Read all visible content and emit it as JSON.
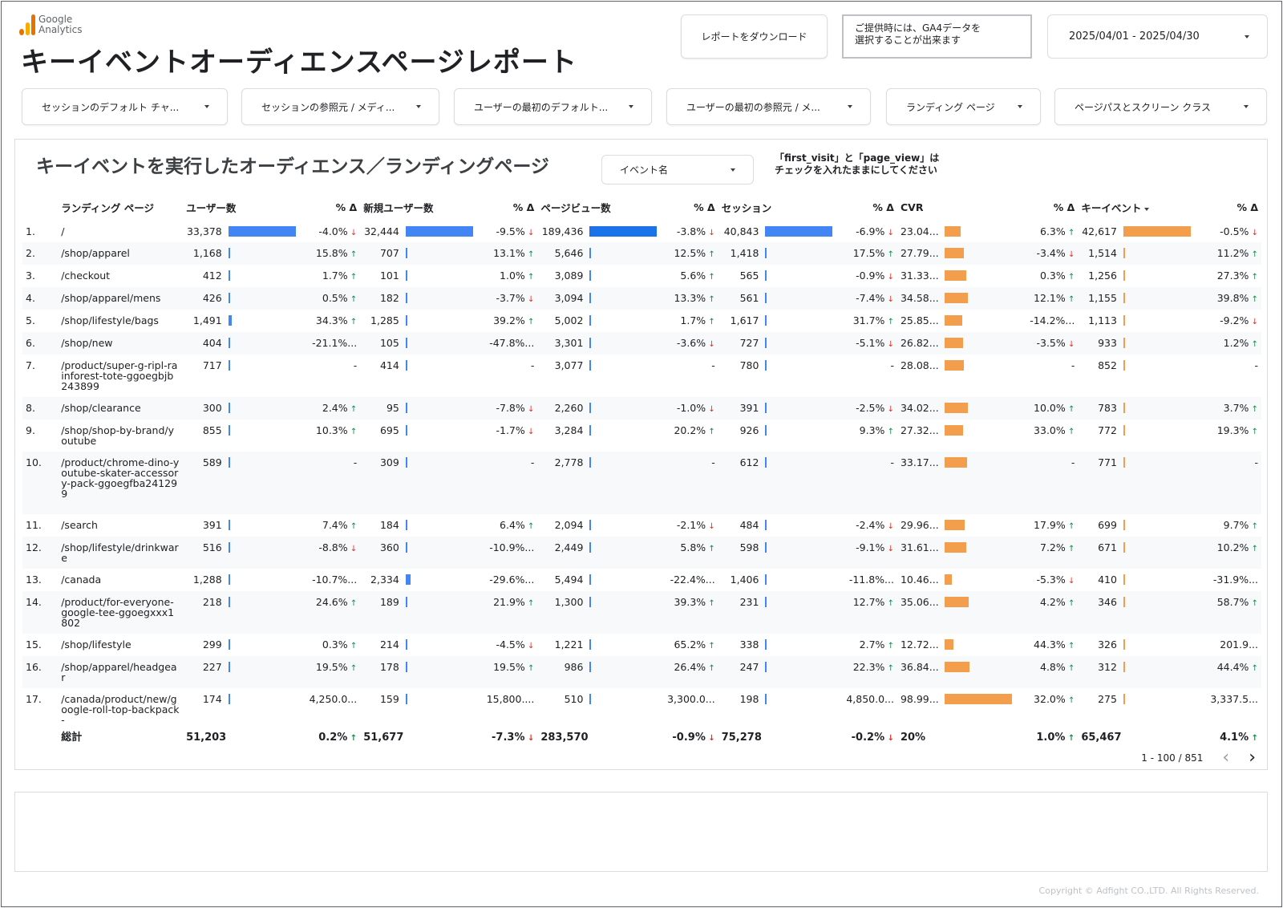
{
  "logo": {
    "line1": "Google",
    "line2": "Analytics"
  },
  "page_title": "キーイベントオーディエンスページレポート",
  "download_label": "レポートをダウンロード",
  "note": {
    "line1": "ご提供時には、GA4データを",
    "line2": "選択することが出来ます"
  },
  "date_range": "2025/04/01 - 2025/04/30",
  "filters": [
    "セッションのデフォルト チャ...",
    "セッションの参照元 / メディ...",
    "ユーザーの最初のデフォルト...",
    "ユーザーの最初の参照元 / メ...",
    "ランディング ページ",
    "ページパスとスクリーン クラス"
  ],
  "panel": {
    "title": "キーイベントを実行したオーディエンス／ランディングページ",
    "event_select": "イベント名",
    "note_line1": "「first_visit」と「page_view」は",
    "note_line2": "チェックを入れたままにしてください"
  },
  "table": {
    "headers": {
      "page": "ランディング ページ",
      "users": "ユーザー数",
      "pct": "% Δ",
      "new_users": "新規ユーザー数",
      "views": "ページビュー数",
      "sessions": "セッション",
      "cvr": "CVR",
      "key_events": "キーイベント"
    },
    "rows": [
      {
        "i": "1.",
        "page": "/",
        "u": "33,378",
        "uv": 33378,
        "ud": "-4.0%",
        "udir": "down",
        "n": "32,444",
        "nv": 32444,
        "nd": "-9.5%",
        "ndir": "down",
        "p": "189,436",
        "pv": 189436,
        "pd": "-3.8%",
        "pdir": "down",
        "s": "40,843",
        "sv": 40843,
        "sd": "-6.9%",
        "sdir": "down",
        "c": "23.04...",
        "cv": 23.04,
        "cd": "6.3%",
        "cdir": "up",
        "k": "42,617",
        "kv": 42617,
        "kd": "-0.5%",
        "kdir": "down"
      },
      {
        "i": "2.",
        "page": "/shop/apparel",
        "u": "1,168",
        "uv": 1168,
        "ud": "15.8%",
        "udir": "up",
        "n": "707",
        "nv": 707,
        "nd": "13.1%",
        "ndir": "up",
        "p": "5,646",
        "pv": 5646,
        "pd": "12.5%",
        "pdir": "up",
        "s": "1,418",
        "sv": 1418,
        "sd": "17.5%",
        "sdir": "up",
        "c": "27.79...",
        "cv": 27.79,
        "cd": "-3.4%",
        "cdir": "down",
        "k": "1,514",
        "kv": 1514,
        "kd": "11.2%",
        "kdir": "up"
      },
      {
        "i": "3.",
        "page": "/checkout",
        "u": "412",
        "uv": 412,
        "ud": "1.7%",
        "udir": "up",
        "n": "101",
        "nv": 101,
        "nd": "1.0%",
        "ndir": "up",
        "p": "3,089",
        "pv": 3089,
        "pd": "5.6%",
        "pdir": "up",
        "s": "565",
        "sv": 565,
        "sd": "-0.9%",
        "sdir": "down",
        "c": "31.33...",
        "cv": 31.33,
        "cd": "0.3%",
        "cdir": "up",
        "k": "1,256",
        "kv": 1256,
        "kd": "27.3%",
        "kdir": "up"
      },
      {
        "i": "4.",
        "page": "/shop/apparel/mens",
        "u": "426",
        "uv": 426,
        "ud": "0.5%",
        "udir": "up",
        "n": "182",
        "nv": 182,
        "nd": "-3.7%",
        "ndir": "down",
        "p": "3,094",
        "pv": 3094,
        "pd": "13.3%",
        "pdir": "up",
        "s": "561",
        "sv": 561,
        "sd": "-7.4%",
        "sdir": "down",
        "c": "34.58...",
        "cv": 34.58,
        "cd": "12.1%",
        "cdir": "up",
        "k": "1,155",
        "kv": 1155,
        "kd": "39.8%",
        "kdir": "up"
      },
      {
        "i": "5.",
        "page": "/shop/lifestyle/bags",
        "u": "1,491",
        "uv": 1491,
        "ud": "34.3%",
        "udir": "up",
        "n": "1,285",
        "nv": 1285,
        "nd": "39.2%",
        "ndir": "up",
        "p": "5,002",
        "pv": 5002,
        "pd": "1.7%",
        "pdir": "up",
        "s": "1,617",
        "sv": 1617,
        "sd": "31.7%",
        "sdir": "up",
        "c": "25.85...",
        "cv": 25.85,
        "cd": "-14.2%...",
        "cdir": "",
        "k": "1,113",
        "kv": 1113,
        "kd": "-9.2%",
        "kdir": "down"
      },
      {
        "i": "6.",
        "page": "/shop/new",
        "u": "404",
        "uv": 404,
        "ud": "-21.1%...",
        "udir": "",
        "n": "105",
        "nv": 105,
        "nd": "-47.8%...",
        "ndir": "",
        "p": "3,301",
        "pv": 3301,
        "pd": "-3.6%",
        "pdir": "down",
        "s": "727",
        "sv": 727,
        "sd": "-5.1%",
        "sdir": "down",
        "c": "26.82...",
        "cv": 26.82,
        "cd": "-3.5%",
        "cdir": "down",
        "k": "933",
        "kv": 933,
        "kd": "1.2%",
        "kdir": "up"
      },
      {
        "i": "7.",
        "page": "/product/super-g-ripl-rainforest-tote-ggoegbjb243899",
        "u": "717",
        "uv": 717,
        "ud": "-",
        "udir": "",
        "n": "414",
        "nv": 414,
        "nd": "-",
        "ndir": "",
        "p": "3,077",
        "pv": 3077,
        "pd": "-",
        "pdir": "",
        "s": "780",
        "sv": 780,
        "sd": "-",
        "sdir": "",
        "c": "28.08...",
        "cv": 28.08,
        "cd": "-",
        "cdir": "",
        "k": "852",
        "kv": 852,
        "kd": "-",
        "kdir": ""
      },
      {
        "i": "8.",
        "page": "/shop/clearance",
        "u": "300",
        "uv": 300,
        "ud": "2.4%",
        "udir": "up",
        "n": "95",
        "nv": 95,
        "nd": "-7.8%",
        "ndir": "down",
        "p": "2,260",
        "pv": 2260,
        "pd": "-1.0%",
        "pdir": "down",
        "s": "391",
        "sv": 391,
        "sd": "-2.5%",
        "sdir": "down",
        "c": "34.02...",
        "cv": 34.02,
        "cd": "10.0%",
        "cdir": "up",
        "k": "783",
        "kv": 783,
        "kd": "3.7%",
        "kdir": "up"
      },
      {
        "i": "9.",
        "page": "/shop/shop-by-brand/youtube",
        "u": "855",
        "uv": 855,
        "ud": "10.3%",
        "udir": "up",
        "n": "695",
        "nv": 695,
        "nd": "-1.7%",
        "ndir": "down",
        "p": "3,284",
        "pv": 3284,
        "pd": "20.2%",
        "pdir": "up",
        "s": "926",
        "sv": 926,
        "sd": "9.3%",
        "sdir": "up",
        "c": "27.32...",
        "cv": 27.32,
        "cd": "33.0%",
        "cdir": "up",
        "k": "772",
        "kv": 772,
        "kd": "19.3%",
        "kdir": "up"
      },
      {
        "i": "10.",
        "page": "/product/chrome-dino-youtube-skater-accessory-pack-ggoegfba241299",
        "u": "589",
        "uv": 589,
        "ud": "-",
        "udir": "",
        "n": "309",
        "nv": 309,
        "nd": "-",
        "ndir": "",
        "p": "2,778",
        "pv": 2778,
        "pd": "-",
        "pdir": "",
        "s": "612",
        "sv": 612,
        "sd": "-",
        "sdir": "",
        "c": "33.17...",
        "cv": 33.17,
        "cd": "-",
        "cdir": "",
        "k": "771",
        "kv": 771,
        "kd": "-",
        "kdir": ""
      },
      {
        "i": "11.",
        "page": "/search",
        "u": "391",
        "uv": 391,
        "ud": "7.4%",
        "udir": "up",
        "n": "184",
        "nv": 184,
        "nd": "6.4%",
        "ndir": "up",
        "p": "2,094",
        "pv": 2094,
        "pd": "-2.1%",
        "pdir": "down",
        "s": "484",
        "sv": 484,
        "sd": "-2.4%",
        "sdir": "down",
        "c": "29.96...",
        "cv": 29.96,
        "cd": "17.9%",
        "cdir": "up",
        "k": "699",
        "kv": 699,
        "kd": "9.7%",
        "kdir": "up"
      },
      {
        "i": "12.",
        "page": "/shop/lifestyle/drinkware",
        "u": "516",
        "uv": 516,
        "ud": "-8.8%",
        "udir": "down",
        "n": "360",
        "nv": 360,
        "nd": "-10.9%...",
        "ndir": "",
        "p": "2,449",
        "pv": 2449,
        "pd": "5.8%",
        "pdir": "up",
        "s": "598",
        "sv": 598,
        "sd": "-9.1%",
        "sdir": "down",
        "c": "31.61...",
        "cv": 31.61,
        "cd": "7.2%",
        "cdir": "up",
        "k": "671",
        "kv": 671,
        "kd": "10.2%",
        "kdir": "up"
      },
      {
        "i": "13.",
        "page": "/canada",
        "u": "1,288",
        "uv": 1288,
        "ud": "-10.7%...",
        "udir": "",
        "n": "2,334",
        "nv": 2334,
        "nd": "-29.6%...",
        "ndir": "",
        "p": "5,494",
        "pv": 5494,
        "pd": "-22.4%...",
        "pdir": "",
        "s": "1,406",
        "sv": 1406,
        "sd": "-11.8%...",
        "sdir": "",
        "c": "10.46...",
        "cv": 10.46,
        "cd": "-5.3%",
        "cdir": "down",
        "k": "410",
        "kv": 410,
        "kd": "-31.9%...",
        "kdir": ""
      },
      {
        "i": "14.",
        "page": "/product/for-everyone-google-tee-ggoegxxx1802",
        "u": "218",
        "uv": 218,
        "ud": "24.6%",
        "udir": "up",
        "n": "189",
        "nv": 189,
        "nd": "21.9%",
        "ndir": "up",
        "p": "1,300",
        "pv": 1300,
        "pd": "39.3%",
        "pdir": "up",
        "s": "231",
        "sv": 231,
        "sd": "12.7%",
        "sdir": "up",
        "c": "35.06...",
        "cv": 35.06,
        "cd": "4.2%",
        "cdir": "up",
        "k": "346",
        "kv": 346,
        "kd": "58.7%",
        "kdir": "up"
      },
      {
        "i": "15.",
        "page": "/shop/lifestyle",
        "u": "299",
        "uv": 299,
        "ud": "0.3%",
        "udir": "up",
        "n": "214",
        "nv": 214,
        "nd": "-4.5%",
        "ndir": "down",
        "p": "1,221",
        "pv": 1221,
        "pd": "65.2%",
        "pdir": "up",
        "s": "338",
        "sv": 338,
        "sd": "2.7%",
        "sdir": "up",
        "c": "12.72...",
        "cv": 12.72,
        "cd": "44.3%",
        "cdir": "up",
        "k": "326",
        "kv": 326,
        "kd": "201.9...",
        "kdir": ""
      },
      {
        "i": "16.",
        "page": "/shop/apparel/headgear",
        "u": "227",
        "uv": 227,
        "ud": "19.5%",
        "udir": "up",
        "n": "178",
        "nv": 178,
        "nd": "19.5%",
        "ndir": "up",
        "p": "986",
        "pv": 986,
        "pd": "26.4%",
        "pdir": "up",
        "s": "247",
        "sv": 247,
        "sd": "22.3%",
        "sdir": "up",
        "c": "36.84...",
        "cv": 36.84,
        "cd": "4.8%",
        "cdir": "up",
        "k": "312",
        "kv": 312,
        "kd": "44.4%",
        "kdir": "up"
      },
      {
        "i": "17.",
        "page": "/canada/product/new/google-roll-top-backpack-",
        "u": "174",
        "uv": 174,
        "ud": "4,250.0...",
        "udir": "",
        "n": "159",
        "nv": 159,
        "nd": "15,800....",
        "ndir": "",
        "p": "510",
        "pv": 510,
        "pd": "3,300.0...",
        "pdir": "",
        "s": "198",
        "sv": 198,
        "sd": "4,850.0...",
        "sdir": "",
        "c": "98.99...",
        "cv": 98.99,
        "cd": "32.0%",
        "cdir": "up",
        "k": "275",
        "kv": 275,
        "kd": "3,337.5...",
        "kdir": ""
      }
    ],
    "total": {
      "label": "総計",
      "u": "51,203",
      "ud": "0.2%",
      "udir": "up",
      "n": "51,677",
      "nd": "-7.3%",
      "ndir": "down",
      "p": "283,570",
      "pd": "-0.9%",
      "pdir": "down",
      "s": "75,278",
      "sd": "-0.2%",
      "sdir": "down",
      "c": "20%",
      "cd": "1.0%",
      "cdir": "up",
      "k": "65,467",
      "kd": "4.1%",
      "kdir": "up"
    }
  },
  "pager": "1 - 100 / 851",
  "copyright": "Copyright © Adfight CO.,LTD. All Rights Reserved.",
  "colors": {
    "bar_blue": "#4285f4",
    "bar_orange": "#f29e4c",
    "up": "#0d8a4a",
    "down": "#d93025"
  }
}
